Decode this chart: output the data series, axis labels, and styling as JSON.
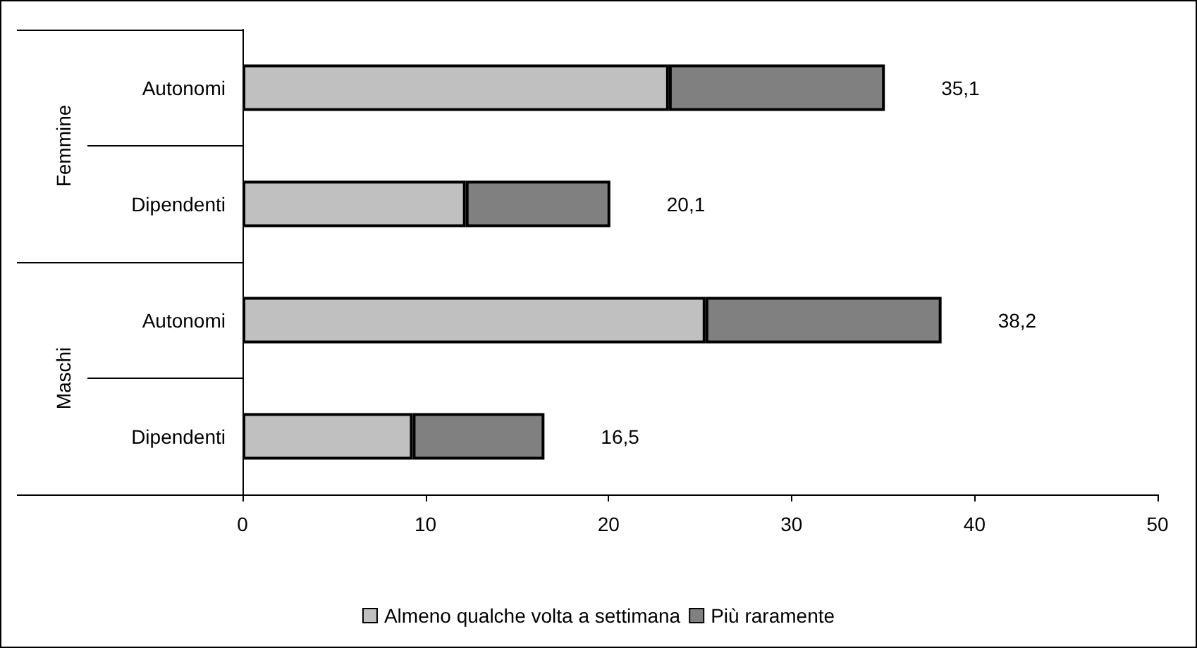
{
  "chart_data": {
    "type": "bar",
    "orientation": "horizontal",
    "stacked": true,
    "categories": [
      "Autonomi",
      "Dipendenti",
      "Autonomi",
      "Dipendenti"
    ],
    "annotations": [
      "Femmine",
      "Maschi"
    ],
    "series": [
      {
        "name": "Almeno qualche volta a settimana",
        "color": "#c0c0c0",
        "values": [
          23.3,
          12.2,
          25.3,
          9.3
        ]
      },
      {
        "name": "Più raramente",
        "color": "#808080",
        "values": [
          11.8,
          7.9,
          12.9,
          7.2
        ]
      }
    ],
    "totals": [
      "35,1",
      "20,1",
      "38,2",
      "16,5"
    ],
    "xlim": [
      0,
      50
    ],
    "xticks": [
      0,
      10,
      20,
      30,
      40,
      50
    ],
    "grid": false,
    "legend": "bottom"
  }
}
